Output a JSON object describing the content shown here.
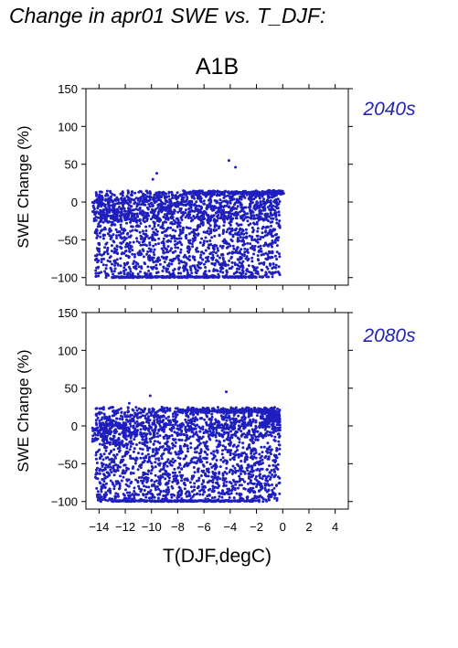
{
  "page_title": "Change in apr01 SWE vs. T_DJF:",
  "colors": {
    "points": "#1f1fbf",
    "label": "#2424b0",
    "axis": "#000000"
  },
  "chart_data": [
    {
      "type": "scatter",
      "title": "A1B",
      "panel_label": "2040s",
      "xlabel": "",
      "ylabel": "SWE Change (%)",
      "xlim": [
        -15,
        5
      ],
      "ylim": [
        -110,
        150
      ],
      "x_ticks": [
        -14,
        -12,
        -10,
        -8,
        -6,
        -4,
        -2,
        0,
        2,
        4
      ],
      "y_ticks": [
        -100,
        -50,
        0,
        50,
        100,
        150
      ],
      "y_tick_labels": [
        "−100",
        "−50",
        "0",
        "50",
        "100",
        "150"
      ],
      "grid": false,
      "point_cloud": {
        "x_range": [
          -14.5,
          0.0
        ],
        "y_range": [
          -100,
          55
        ],
        "notes": "dense cluster between -100 and +15 %; floor band at -100 from x=-13 to -1.5; plateau near +12 at x -7 to 0",
        "outliers": [
          [
            -9.6,
            38
          ],
          [
            -9.9,
            30
          ],
          [
            -4.1,
            55
          ],
          [
            -3.6,
            46
          ],
          [
            -13.5,
            2
          ],
          [
            -14.3,
            1
          ]
        ]
      }
    },
    {
      "type": "scatter",
      "title": "",
      "panel_label": "2080s",
      "xlabel": "T(DJF,degC)",
      "ylabel": "SWE Change (%)",
      "xlim": [
        -15,
        5
      ],
      "ylim": [
        -110,
        150
      ],
      "x_ticks": [
        -14,
        -12,
        -10,
        -8,
        -6,
        -4,
        -2,
        0,
        2,
        4
      ],
      "x_tick_labels": [
        "−14",
        "−12",
        "−10",
        "−8",
        "−6",
        "−4",
        "−2",
        "0",
        "2",
        "4"
      ],
      "y_ticks": [
        -100,
        -50,
        0,
        50,
        100,
        150
      ],
      "y_tick_labels": [
        "−100",
        "−50",
        "0",
        "50",
        "100",
        "150"
      ],
      "grid": false,
      "point_cloud": {
        "x_range": [
          -14.5,
          0.0
        ],
        "y_range": [
          -100,
          45
        ],
        "notes": "dense cluster between -100 and +25 %; floor band at -100 from x=-13 to -2; high arm near +25 at x -1.5 to -0.5",
        "outliers": [
          [
            -10.1,
            40
          ],
          [
            -11.7,
            30
          ],
          [
            -4.3,
            45
          ],
          [
            -1.8,
            -100
          ],
          [
            -1.5,
            -100
          ]
        ]
      }
    }
  ]
}
